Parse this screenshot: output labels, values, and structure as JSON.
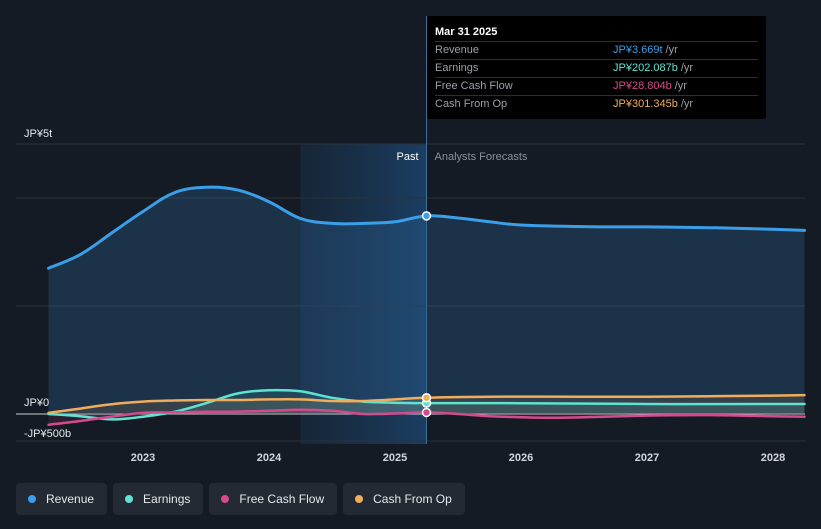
{
  "chart_data": {
    "type": "line",
    "y_axis": {
      "min": -500,
      "max": 5000,
      "unit": "JP¥ billions",
      "labels": [
        {
          "value": 5000,
          "text": "JP¥5t"
        },
        {
          "value": 0,
          "text": "JP¥0"
        },
        {
          "value": -500,
          "text": "-JP¥500b"
        }
      ],
      "gridlines": [
        5000,
        4000,
        2000,
        0,
        -500
      ]
    },
    "x_axis": {
      "min": 2022.25,
      "max": 2028.25,
      "ticks": [
        {
          "value": 2023,
          "text": "2023"
        },
        {
          "value": 2024,
          "text": "2024"
        },
        {
          "value": 2025,
          "text": "2025"
        },
        {
          "value": 2026,
          "text": "2026"
        },
        {
          "value": 2027,
          "text": "2027"
        },
        {
          "value": 2028,
          "text": "2028"
        }
      ]
    },
    "past_region": {
      "start": 2024.25,
      "end": 2025.25
    },
    "divider_x": 2025.25,
    "past_label": "Past",
    "forecast_label": "Analysts Forecasts",
    "series": [
      {
        "name": "Revenue",
        "color": "#3a9fe8",
        "fill": true,
        "points": [
          [
            2022.25,
            2700
          ],
          [
            2022.5,
            2950
          ],
          [
            2022.75,
            3350
          ],
          [
            2023.0,
            3750
          ],
          [
            2023.25,
            4100
          ],
          [
            2023.5,
            4200
          ],
          [
            2023.75,
            4150
          ],
          [
            2024.0,
            3930
          ],
          [
            2024.25,
            3620
          ],
          [
            2024.5,
            3530
          ],
          [
            2024.75,
            3530
          ],
          [
            2025.0,
            3560
          ],
          [
            2025.25,
            3669
          ],
          [
            2025.5,
            3630
          ],
          [
            2025.75,
            3560
          ],
          [
            2026.0,
            3500
          ],
          [
            2026.5,
            3470
          ],
          [
            2027.0,
            3465
          ],
          [
            2027.5,
            3450
          ],
          [
            2028.0,
            3420
          ],
          [
            2028.25,
            3400
          ]
        ]
      },
      {
        "name": "Earnings",
        "color": "#5ee3d2",
        "fill": true,
        "points": [
          [
            2022.25,
            0
          ],
          [
            2022.5,
            -40
          ],
          [
            2022.75,
            -100
          ],
          [
            2023.0,
            -50
          ],
          [
            2023.25,
            40
          ],
          [
            2023.5,
            200
          ],
          [
            2023.75,
            380
          ],
          [
            2024.0,
            440
          ],
          [
            2024.25,
            420
          ],
          [
            2024.5,
            300
          ],
          [
            2024.75,
            230
          ],
          [
            2025.0,
            210
          ],
          [
            2025.25,
            202.087
          ],
          [
            2026.0,
            200
          ],
          [
            2027.0,
            185
          ],
          [
            2028.0,
            185
          ],
          [
            2028.25,
            185
          ]
        ]
      },
      {
        "name": "Free Cash Flow",
        "color": "#d24b8e",
        "fill": true,
        "points": [
          [
            2022.25,
            -200
          ],
          [
            2022.5,
            -130
          ],
          [
            2022.75,
            -50
          ],
          [
            2023.0,
            20
          ],
          [
            2023.25,
            30
          ],
          [
            2023.5,
            40
          ],
          [
            2023.75,
            45
          ],
          [
            2024.0,
            60
          ],
          [
            2024.25,
            80
          ],
          [
            2024.5,
            60
          ],
          [
            2024.75,
            0
          ],
          [
            2025.0,
            10
          ],
          [
            2025.25,
            28.804
          ],
          [
            2025.5,
            0
          ],
          [
            2025.75,
            -40
          ],
          [
            2026.0,
            -60
          ],
          [
            2026.25,
            -70
          ],
          [
            2026.5,
            -60
          ],
          [
            2027.0,
            -30
          ],
          [
            2027.5,
            -20
          ],
          [
            2028.0,
            -40
          ],
          [
            2028.25,
            -50
          ]
        ]
      },
      {
        "name": "Cash From Op",
        "color": "#f0ad5c",
        "fill": true,
        "points": [
          [
            2022.25,
            20
          ],
          [
            2022.5,
            100
          ],
          [
            2022.75,
            180
          ],
          [
            2023.0,
            230
          ],
          [
            2023.25,
            250
          ],
          [
            2023.5,
            260
          ],
          [
            2023.75,
            260
          ],
          [
            2024.0,
            270
          ],
          [
            2024.25,
            270
          ],
          [
            2024.5,
            240
          ],
          [
            2024.75,
            240
          ],
          [
            2025.0,
            270
          ],
          [
            2025.25,
            301.345
          ],
          [
            2025.75,
            320
          ],
          [
            2026.5,
            320
          ],
          [
            2027.0,
            320
          ],
          [
            2027.5,
            330
          ],
          [
            2028.0,
            340
          ],
          [
            2028.25,
            350
          ]
        ]
      }
    ],
    "highlight_x": 2025.25
  },
  "tooltip": {
    "date": "Mar 31 2025",
    "rows": [
      {
        "label": "Revenue",
        "value": "JP¥3.669t",
        "unit": "/yr",
        "color": "#3a9fe8"
      },
      {
        "label": "Earnings",
        "value": "JP¥202.087b",
        "unit": "/yr",
        "color": "#5ee3d2"
      },
      {
        "label": "Free Cash Flow",
        "value": "JP¥28.804b",
        "unit": "/yr",
        "color": "#d24b8e"
      },
      {
        "label": "Cash From Op",
        "value": "JP¥301.345b",
        "unit": "/yr",
        "color": "#f0ad5c"
      }
    ]
  },
  "legend": [
    {
      "label": "Revenue",
      "color": "#3a9fe8"
    },
    {
      "label": "Earnings",
      "color": "#5ee3d2"
    },
    {
      "label": "Free Cash Flow",
      "color": "#d24b8e"
    },
    {
      "label": "Cash From Op",
      "color": "#f0ad5c"
    }
  ]
}
